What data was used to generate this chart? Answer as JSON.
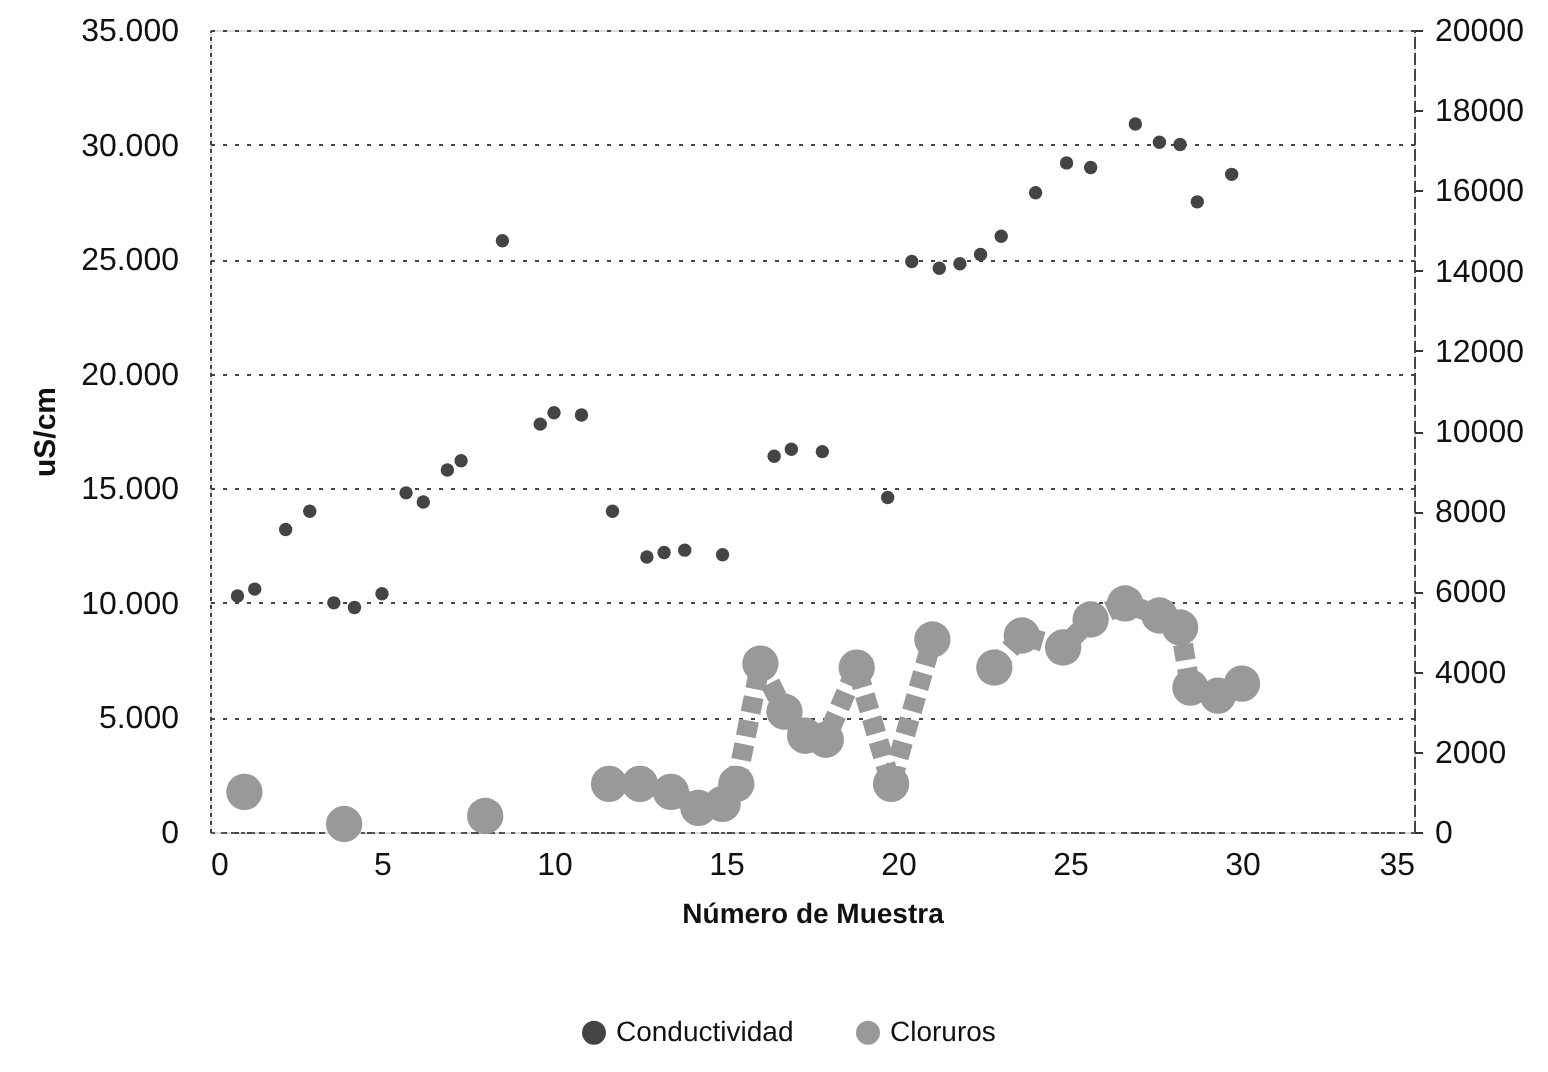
{
  "chart_data": {
    "type": "scatter",
    "xlabel": "Número de Muestra",
    "ylabel": "uS/cm",
    "xlim": [
      0,
      35
    ],
    "xticks": [
      0,
      5,
      10,
      15,
      20,
      25,
      30,
      35
    ],
    "ylim": [
      0,
      35000
    ],
    "yticks": [
      0,
      {
        "value": 5000,
        "label": "5.000"
      },
      {
        "value": 10000,
        "label": "10.000"
      },
      {
        "value": 15000,
        "label": "15.000"
      },
      {
        "value": 20000,
        "label": "20.000"
      },
      {
        "value": 25000,
        "label": "25.000"
      },
      {
        "value": 30000,
        "label": "30.000"
      },
      {
        "value": 35000,
        "label": "35.000"
      }
    ],
    "y2lim": [
      0,
      20000
    ],
    "y2ticks": [
      0,
      2000,
      4000,
      6000,
      8000,
      10000,
      12000,
      14000,
      16000,
      18000,
      20000
    ],
    "grid": "y",
    "legend": "bottom",
    "marker": "circle",
    "series": [
      {
        "name": "Conductividad",
        "color": "#444444",
        "x": [
          0.8,
          1.3,
          2.2,
          2.9,
          3.6,
          4.2,
          5.0,
          5.7,
          6.2,
          6.9,
          7.3,
          8.5,
          9.6,
          10.0,
          10.8,
          11.7,
          12.7,
          13.2,
          13.8,
          14.9,
          16.4,
          16.9,
          17.8,
          19.7,
          20.4,
          21.2,
          21.8,
          22.4,
          23.0,
          24.0,
          24.9,
          25.6,
          26.9,
          27.6,
          28.2,
          28.7,
          29.7
        ],
        "values": [
          10300,
          10600,
          13200,
          14000,
          10000,
          9800,
          10400,
          14800,
          14400,
          15800,
          16200,
          25800,
          17800,
          18300,
          18200,
          14000,
          12000,
          12200,
          12300,
          12100,
          16400,
          16700,
          16600,
          14600,
          24900,
          24600,
          24800,
          25200,
          26000,
          27900,
          29200,
          29000,
          30900,
          30100,
          30000,
          27500,
          28700
        ]
      },
      {
        "name": "Cloruros",
        "type": "line",
        "axis": "y2",
        "color": "#999999",
        "line_style": "dashed",
        "x": [
          1.0,
          2.5,
          3.9,
          6.0,
          8.0,
          10.0,
          11.6,
          12.5,
          13.4,
          14.2,
          14.9,
          15.3,
          16.0,
          16.7,
          17.3,
          17.9,
          18.8,
          19.8,
          21.0,
          21.8,
          22.8,
          23.6,
          24.8,
          25.6,
          26.6,
          27.6,
          28.2,
          28.5,
          29.3,
          30.0
        ],
        "values": [
          1000,
          null,
          200,
          null,
          400,
          null,
          1200,
          1200,
          1000,
          600,
          700,
          1200,
          4200,
          3000,
          2400,
          2300,
          4100,
          1200,
          4800,
          null,
          4100,
          4900,
          4600,
          5300,
          5700,
          5400,
          5100,
          3600,
          3400,
          3700
        ]
      }
    ]
  }
}
